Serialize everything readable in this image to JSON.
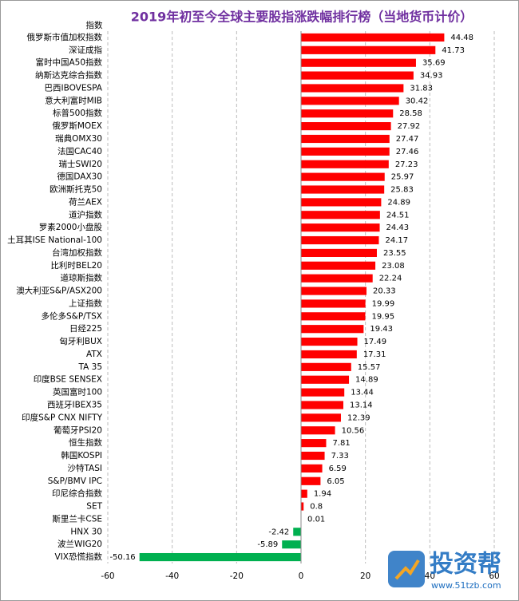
{
  "chart_data": {
    "type": "barh",
    "title": "2019年初至今全球主要股指涨跌幅排行榜（当地货币计价）",
    "y_label": "指数",
    "categories": [
      "俄罗斯市值加权指数",
      "深证成指",
      "富时中国A50指数",
      "纳斯达克综合指数",
      "巴西IBOVESPA",
      "意大利富时MIB",
      "标普500指数",
      "俄罗斯MOEX",
      "瑞典OMX30",
      "法国CAC40",
      "瑞士SWI20",
      "德国DAX30",
      "欧洲斯托克50",
      "荷兰AEX",
      "道沪指数",
      "罗素2000小盘股",
      "土耳其ISE National-100",
      "台湾加权指数",
      "比利时BEL20",
      "道琼斯指数",
      "澳大利亚S&P/ASX200",
      "上证指数",
      "多伦多S&P/TSX",
      "日经225",
      "匈牙利BUX",
      "ATX",
      "TA 35",
      "印度BSE SENSEX",
      "英国富时100",
      "西班牙IBEX35",
      "印度S&P CNX NIFTY",
      "葡萄牙PSI20",
      "恒生指数",
      "韩国KOSPI",
      "沙特TASI",
      "S&P/BMV IPC",
      "印尼综合指数",
      "SET",
      "斯里兰卡CSE",
      "HNX 30",
      "波兰WIG20",
      "VIX恐慌指数"
    ],
    "values": [
      44.48,
      41.73,
      35.69,
      34.93,
      31.83,
      30.42,
      28.58,
      27.92,
      27.47,
      27.46,
      27.23,
      25.97,
      25.83,
      24.89,
      24.51,
      24.43,
      24.17,
      23.55,
      23.08,
      22.24,
      20.33,
      19.99,
      19.95,
      19.43,
      17.49,
      17.31,
      15.57,
      14.89,
      13.44,
      13.14,
      12.39,
      10.56,
      7.81,
      7.33,
      6.59,
      6.05,
      1.94,
      0.8,
      0.01,
      -2.42,
      -5.89,
      -50.16
    ],
    "positive_color": "#ff0000",
    "negative_color": "#00b050",
    "xlim": [
      -60,
      60
    ],
    "xticks": [
      -60,
      -40,
      -20,
      0,
      20,
      40,
      60
    ],
    "grid": true
  },
  "watermark": {
    "brand": "投资帮",
    "url": "www.51tzb.com"
  }
}
